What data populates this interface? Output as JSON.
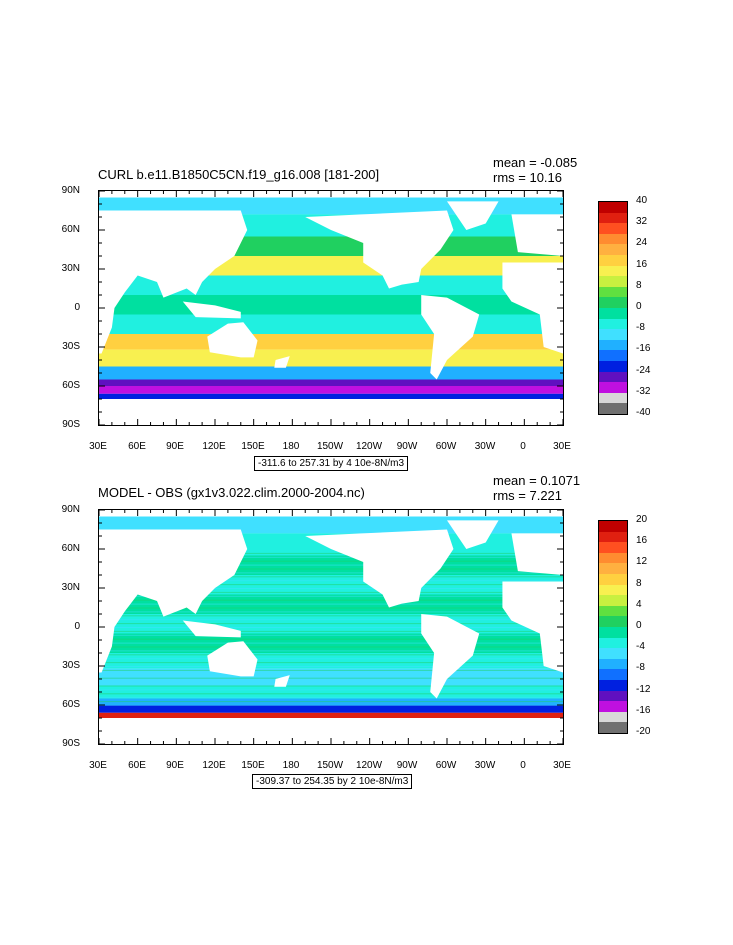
{
  "panels": [
    {
      "title": "CURL b.e11.B1850C5CN.f19_g16.008 [181-200]",
      "mean": "mean = -0.085",
      "rms": "rms = 10.16",
      "range_label": "-311.6 to 257.31 by 4 10e-8N/m3",
      "lat_labels": [
        "90N",
        "60N",
        "30N",
        "0",
        "30S",
        "60S",
        "90S"
      ],
      "lon_labels": [
        "30E",
        "60E",
        "90E",
        "120E",
        "150E",
        "180",
        "150W",
        "120W",
        "90W",
        "60W",
        "30W",
        "0",
        "30E"
      ],
      "colorbar_labels": [
        "40",
        "32",
        "24",
        "16",
        "8",
        "0",
        "-8",
        "-16",
        "-24",
        "-32",
        "-40"
      ],
      "colorbar_colors": [
        "#c00000",
        "#e02010",
        "#ff5020",
        "#ff8c30",
        "#ffb040",
        "#ffd040",
        "#f8f050",
        "#c8f040",
        "#60e040",
        "#20d060",
        "#00e0a0",
        "#20f0e0",
        "#40e0ff",
        "#20b0ff",
        "#1070ff",
        "#0020e0",
        "#6010c0",
        "#c010e0",
        "#d8d8d8",
        "#707070"
      ]
    },
    {
      "title": "MODEL - OBS (gx1v3.022.clim.2000-2004.nc)",
      "mean": "mean = 0.1071",
      "rms": "rms = 7.221",
      "range_label": "-309.37 to 254.35 by 2 10e-8N/m3",
      "lat_labels": [
        "90N",
        "60N",
        "30N",
        "0",
        "30S",
        "60S",
        "90S"
      ],
      "lon_labels": [
        "30E",
        "60E",
        "90E",
        "120E",
        "150E",
        "180",
        "150W",
        "120W",
        "90W",
        "60W",
        "30W",
        "0",
        "30E"
      ],
      "colorbar_labels": [
        "20",
        "16",
        "12",
        "8",
        "4",
        "0",
        "-4",
        "-8",
        "-12",
        "-16",
        "-20"
      ],
      "colorbar_colors": [
        "#c00000",
        "#e02010",
        "#ff5020",
        "#ff8c30",
        "#ffb040",
        "#ffd040",
        "#f8f050",
        "#c8f040",
        "#60e040",
        "#20d060",
        "#00e0a0",
        "#20f0e0",
        "#40e0ff",
        "#20b0ff",
        "#1070ff",
        "#0020e0",
        "#6010c0",
        "#c010e0",
        "#d8d8d8",
        "#707070"
      ]
    }
  ]
}
